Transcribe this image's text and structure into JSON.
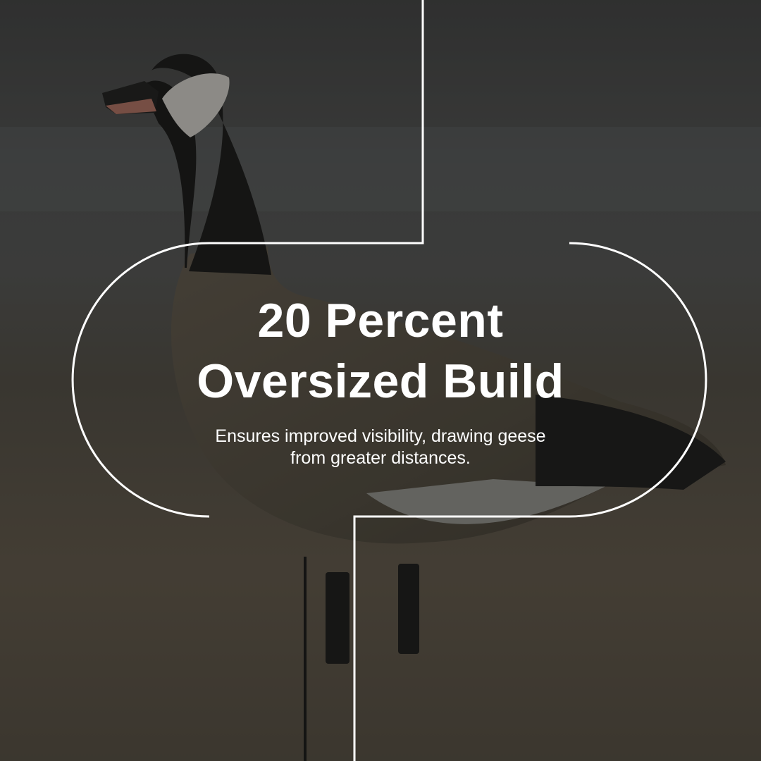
{
  "headline": {
    "line1": "20 Percent",
    "line2": "Oversized Build"
  },
  "description": {
    "line1": "Ensures improved visibility, drawing geese",
    "line2": "from greater distances."
  },
  "colors": {
    "text": "#ffffff",
    "frame_lines": "#ffffff",
    "overlay": "#2b2b28"
  }
}
